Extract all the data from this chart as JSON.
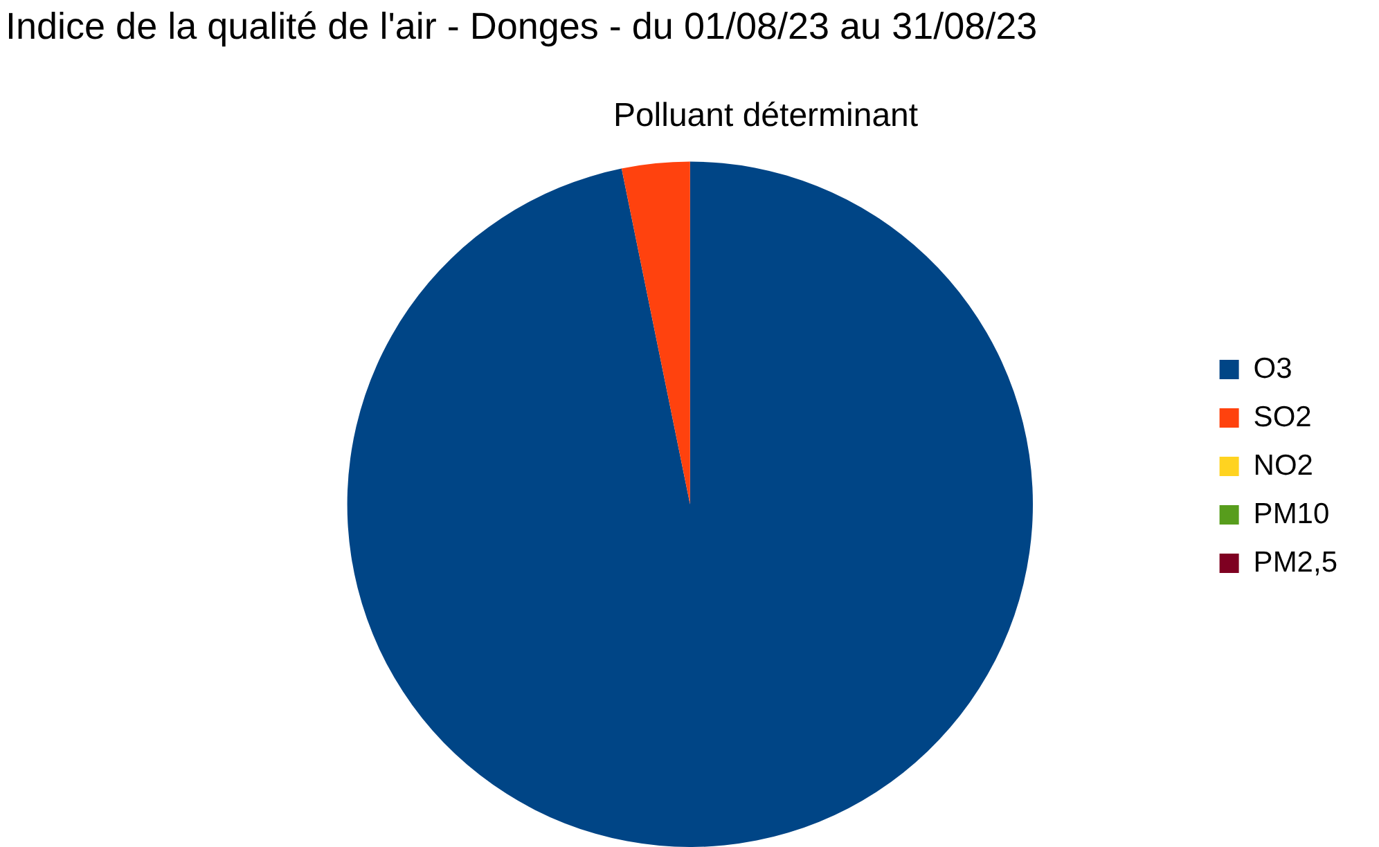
{
  "chart_data": {
    "type": "pie",
    "title": "Indice de la qualité de l'air - Donges - du 01/08/23 au 31/08/23",
    "subtitle": "Polluant déterminant",
    "categories": [
      "O3",
      "SO2",
      "NO2",
      "PM10",
      "PM2,5"
    ],
    "values": [
      96.8,
      3.2,
      0,
      0,
      0
    ],
    "colors": [
      "#004586",
      "#ff420e",
      "#ffd320",
      "#579d1c",
      "#7e0021"
    ],
    "legend": "right"
  }
}
